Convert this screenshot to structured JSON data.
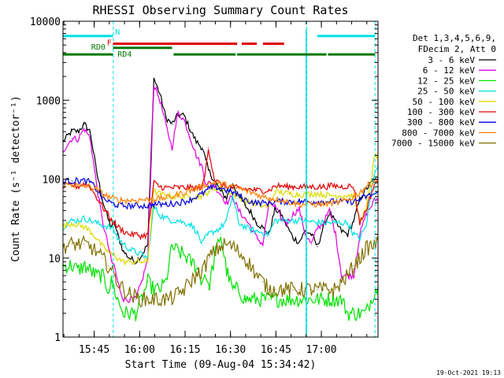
{
  "chart_data": {
    "type": "line",
    "title": "RHESSI Observing Summary Count Rates",
    "xlabel": "Start Time (09-Aug-04 15:34:42)",
    "ylabel": "Count Rate (s⁻¹ detector⁻¹)",
    "yscale": "log",
    "ylim": [
      1,
      10000
    ],
    "xlim_min": [
      0,
      104
    ],
    "y_ticks": [
      {
        "value": 1,
        "label": "1"
      },
      {
        "value": 10,
        "label": "10"
      },
      {
        "value": 100,
        "label": "100"
      },
      {
        "value": 1000,
        "label": "1000"
      },
      {
        "value": 10000,
        "label": "10000"
      }
    ],
    "x_ticks": [
      {
        "value": 10.3,
        "label": "15:45"
      },
      {
        "value": 25.3,
        "label": "16:00"
      },
      {
        "value": 40.3,
        "label": "16:15"
      },
      {
        "value": 55.3,
        "label": "16:30"
      },
      {
        "value": 70.3,
        "label": "16:45"
      },
      {
        "value": 85.3,
        "label": "17:00"
      }
    ],
    "legend_header": [
      "Det 1,3,4,5,6,9,",
      "FDecim 2, Att 0"
    ],
    "series": [
      {
        "name": "3 - 6 keV",
        "color": "#000000",
        "x": [
          0,
          3,
          5,
          7,
          9,
          11,
          13,
          15,
          16,
          17,
          18,
          20,
          22,
          24,
          26,
          28,
          30,
          32,
          34,
          36,
          38,
          40,
          42,
          44,
          46,
          47,
          48,
          50,
          52,
          54,
          56,
          58,
          60,
          62,
          64,
          66,
          68,
          70,
          72,
          74,
          76,
          78,
          80,
          82,
          84,
          86,
          88,
          90,
          92,
          94,
          96,
          98,
          100,
          103
        ],
        "y": [
          300,
          410,
          400,
          500,
          400,
          130,
          55,
          30,
          25,
          28,
          20,
          12,
          10,
          9,
          11,
          15,
          1900,
          1200,
          600,
          500,
          650,
          640,
          420,
          300,
          250,
          180,
          130,
          95,
          70,
          58,
          88,
          62,
          47,
          38,
          28,
          24,
          20,
          42,
          36,
          25,
          18,
          16,
          22,
          20,
          14,
          25,
          38,
          28,
          22,
          20,
          30,
          55,
          75,
          100
        ]
      },
      {
        "name": "6 - 12 keV",
        "color": "#e100e1",
        "x": [
          0,
          3,
          5,
          7,
          9,
          11,
          13,
          15,
          16,
          17,
          18,
          20,
          22,
          24,
          26,
          28,
          30,
          32,
          34,
          36,
          38,
          40,
          42,
          44,
          46,
          47,
          48,
          50,
          52,
          54,
          56,
          58,
          60,
          62,
          64,
          66,
          68,
          70,
          72,
          74,
          76,
          78,
          80,
          82,
          84,
          86,
          88,
          90,
          92,
          94,
          96,
          98,
          100,
          103
        ],
        "y": [
          230,
          330,
          320,
          440,
          330,
          90,
          30,
          14,
          9,
          8,
          5,
          3,
          3,
          3,
          5,
          10,
          1600,
          1000,
          480,
          250,
          700,
          560,
          340,
          200,
          140,
          90,
          90,
          82,
          65,
          50,
          60,
          40,
          32,
          25,
          18,
          15,
          50,
          45,
          32,
          28,
          36,
          42,
          20,
          15,
          24,
          28,
          40,
          20,
          6,
          6,
          6,
          20,
          35,
          55
        ]
      },
      {
        "name": "12 - 25 keV",
        "color": "#00e100",
        "x": [
          0,
          3,
          5,
          7,
          9,
          11,
          13,
          15,
          16,
          17,
          18,
          20,
          22,
          24,
          26,
          28,
          30,
          32,
          34,
          36,
          38,
          40,
          42,
          44,
          46,
          47,
          48,
          50,
          52,
          54,
          56,
          58,
          60,
          62,
          64,
          66,
          68,
          70,
          72,
          74,
          76,
          78,
          80,
          82,
          84,
          86,
          88,
          90,
          92,
          94,
          96,
          98,
          100,
          103
        ],
        "y": [
          8,
          8,
          7,
          8,
          7,
          6,
          6,
          4,
          5,
          4,
          3,
          2,
          2,
          2,
          3,
          5,
          4,
          4,
          5,
          14,
          12,
          11,
          9,
          8,
          5,
          7,
          4,
          10,
          20,
          7,
          4,
          4,
          3,
          3,
          3,
          3,
          3,
          3,
          3,
          3,
          3,
          3,
          3,
          3,
          3,
          3,
          3,
          3,
          3,
          2,
          2,
          2,
          2,
          4
        ]
      },
      {
        "name": "25 - 50 keV",
        "color": "#00e1e1",
        "x": [
          0,
          3,
          5,
          7,
          9,
          11,
          13,
          15,
          16,
          17,
          18,
          20,
          22,
          24,
          26,
          28,
          30,
          32,
          34,
          36,
          38,
          40,
          42,
          44,
          46,
          47,
          48,
          50,
          52,
          54,
          56,
          58,
          60,
          62,
          64,
          66,
          68,
          70,
          72,
          74,
          76,
          78,
          80,
          82,
          84,
          86,
          88,
          90,
          92,
          94,
          96,
          98,
          100,
          103
        ],
        "y": [
          25,
          30,
          30,
          32,
          30,
          28,
          26,
          25,
          24,
          22,
          18,
          15,
          13,
          12,
          11,
          10,
          45,
          35,
          32,
          30,
          30,
          28,
          27,
          22,
          15,
          18,
          20,
          22,
          24,
          30,
          62,
          28,
          25,
          23,
          22,
          21,
          20,
          30,
          30,
          30,
          30,
          30,
          30,
          29,
          28,
          28,
          28,
          28,
          28,
          28,
          20,
          18,
          25,
          140
        ]
      },
      {
        "name": "50 - 100 keV",
        "color": "#dcdc00",
        "x": [
          0,
          3,
          5,
          7,
          9,
          11,
          13,
          15,
          16,
          17,
          18,
          20,
          22,
          24,
          26,
          28,
          30,
          32,
          34,
          36,
          38,
          40,
          42,
          44,
          46,
          47,
          48,
          50,
          52,
          54,
          56,
          58,
          60,
          62,
          64,
          66,
          68,
          70,
          72,
          74,
          76,
          78,
          80,
          82,
          84,
          86,
          88,
          90,
          92,
          94,
          96,
          98,
          100,
          103
        ],
        "y": [
          25,
          28,
          26,
          25,
          22,
          18,
          14,
          12,
          11,
          11,
          10,
          9,
          9,
          9,
          9,
          9,
          70,
          65,
          62,
          60,
          60,
          60,
          60,
          60,
          62,
          65,
          70,
          75,
          80,
          72,
          65,
          60,
          55,
          50,
          48,
          46,
          45,
          70,
          68,
          66,
          65,
          64,
          64,
          65,
          66,
          64,
          62,
          62,
          62,
          62,
          62,
          30,
          40,
          200
        ]
      },
      {
        "name": "100 - 300 keV",
        "color": "#e10000",
        "x": [
          0,
          3,
          5,
          7,
          9,
          11,
          13,
          15,
          16,
          17,
          18,
          20,
          22,
          24,
          26,
          28,
          30,
          32,
          34,
          36,
          38,
          40,
          42,
          44,
          46,
          47,
          48,
          50,
          52,
          54,
          56,
          58,
          60,
          62,
          64,
          66,
          68,
          70,
          72,
          74,
          76,
          78,
          80,
          82,
          84,
          86,
          88,
          90,
          92,
          94,
          96,
          98,
          100,
          103
        ],
        "y": [
          80,
          85,
          80,
          88,
          80,
          60,
          45,
          35,
          30,
          28,
          25,
          22,
          20,
          20,
          19,
          20,
          90,
          80,
          78,
          78,
          78,
          78,
          78,
          78,
          80,
          120,
          250,
          100,
          85,
          80,
          78,
          77,
          75,
          74,
          72,
          72,
          72,
          82,
          82,
          80,
          80,
          80,
          80,
          80,
          80,
          80,
          82,
          82,
          80,
          82,
          80,
          28,
          40,
          90
        ]
      },
      {
        "name": "300 - 800 keV",
        "color": "#0000e1",
        "x": [
          0,
          3,
          5,
          7,
          9,
          11,
          13,
          15,
          16,
          17,
          18,
          20,
          22,
          24,
          26,
          28,
          30,
          32,
          34,
          36,
          38,
          40,
          42,
          44,
          46,
          47,
          48,
          50,
          52,
          54,
          56,
          58,
          60,
          62,
          64,
          66,
          68,
          70,
          72,
          74,
          76,
          78,
          80,
          82,
          84,
          86,
          88,
          90,
          92,
          94,
          96,
          98,
          100,
          103
        ],
        "y": [
          95,
          95,
          96,
          95,
          92,
          75,
          58,
          52,
          50,
          48,
          47,
          46,
          46,
          46,
          46,
          46,
          48,
          48,
          48,
          49,
          50,
          52,
          55,
          60,
          65,
          70,
          75,
          80,
          78,
          72,
          68,
          62,
          55,
          52,
          50,
          50,
          50,
          52,
          52,
          52,
          52,
          52,
          52,
          52,
          52,
          52,
          52,
          52,
          52,
          52,
          52,
          55,
          60,
          65
        ]
      },
      {
        "name": "800 - 7000 keV",
        "color": "#ff8000",
        "x": [
          0,
          3,
          5,
          7,
          9,
          11,
          13,
          15,
          16,
          17,
          18,
          20,
          22,
          24,
          26,
          28,
          30,
          32,
          34,
          36,
          38,
          40,
          42,
          44,
          46,
          47,
          48,
          50,
          52,
          54,
          56,
          58,
          60,
          62,
          64,
          66,
          68,
          70,
          72,
          74,
          76,
          78,
          80,
          82,
          84,
          86,
          88,
          90,
          92,
          94,
          96,
          98,
          100,
          103
        ],
        "y": [
          85,
          85,
          82,
          82,
          80,
          75,
          66,
          60,
          58,
          56,
          55,
          54,
          54,
          54,
          55,
          55,
          56,
          57,
          58,
          60,
          64,
          68,
          72,
          76,
          80,
          85,
          88,
          90,
          88,
          84,
          80,
          76,
          72,
          68,
          64,
          60,
          58,
          56,
          55,
          52,
          50,
          48,
          48,
          48,
          48,
          48,
          49,
          50,
          52,
          54,
          60,
          68,
          80,
          95
        ]
      },
      {
        "name": "7000 - 15000 keV",
        "color": "#807000",
        "x": [
          0,
          3,
          5,
          7,
          9,
          11,
          13,
          15,
          16,
          17,
          18,
          20,
          22,
          24,
          26,
          28,
          30,
          32,
          34,
          36,
          38,
          40,
          42,
          44,
          46,
          47,
          48,
          50,
          52,
          54,
          56,
          58,
          60,
          62,
          64,
          66,
          68,
          70,
          72,
          74,
          76,
          78,
          80,
          82,
          84,
          86,
          88,
          90,
          92,
          94,
          96,
          98,
          100,
          103
        ],
        "y": [
          14,
          15,
          15,
          15,
          14,
          12,
          10,
          8,
          7,
          6,
          5,
          4,
          3.5,
          3.2,
          3.0,
          3.0,
          3.0,
          3.0,
          3.0,
          3.1,
          3.5,
          4,
          5,
          6,
          7,
          8,
          10,
          12,
          14,
          15,
          14,
          12,
          10,
          8,
          6,
          5,
          4,
          4,
          4,
          4,
          4,
          4,
          4,
          4,
          4,
          4,
          4,
          4,
          5,
          6,
          8,
          10,
          13,
          15
        ]
      }
    ],
    "annotations": [
      {
        "text": "N",
        "color": "#00e1e1"
      },
      {
        "text": "F",
        "color": "#e10000"
      },
      {
        "text": "RD0",
        "color": "#007800"
      },
      {
        "text": "RD4",
        "color": "#007800"
      }
    ],
    "segment_bars": [
      {
        "name": "night",
        "label_ref": "N",
        "y": 6500,
        "color": "#00e1e1",
        "ranges": [
          [
            0,
            16.5
          ],
          [
            84,
            103
          ]
        ]
      },
      {
        "name": "flare",
        "label_ref": "F",
        "y": 5200,
        "color": "#e10000",
        "ranges": [
          [
            16.5,
            57.5
          ],
          [
            59,
            64
          ],
          [
            66,
            73
          ]
        ]
      },
      {
        "name": "saa-rd0",
        "label_ref": "RD0",
        "y": 4600,
        "color": "#007800",
        "ranges": [
          [
            16.5,
            36
          ]
        ]
      },
      {
        "name": "saa-rd4",
        "label_ref": "RD4",
        "y": 3800,
        "color": "#007800",
        "ranges": [
          [
            0,
            16.5
          ],
          [
            36.5,
            57
          ],
          [
            57.5,
            87
          ],
          [
            87.5,
            103
          ]
        ]
      }
    ],
    "vertical_markers": [
      16.6,
      80.5,
      103
    ]
  },
  "footer": {
    "timestamp": "19-Oct-2021 19:13"
  }
}
